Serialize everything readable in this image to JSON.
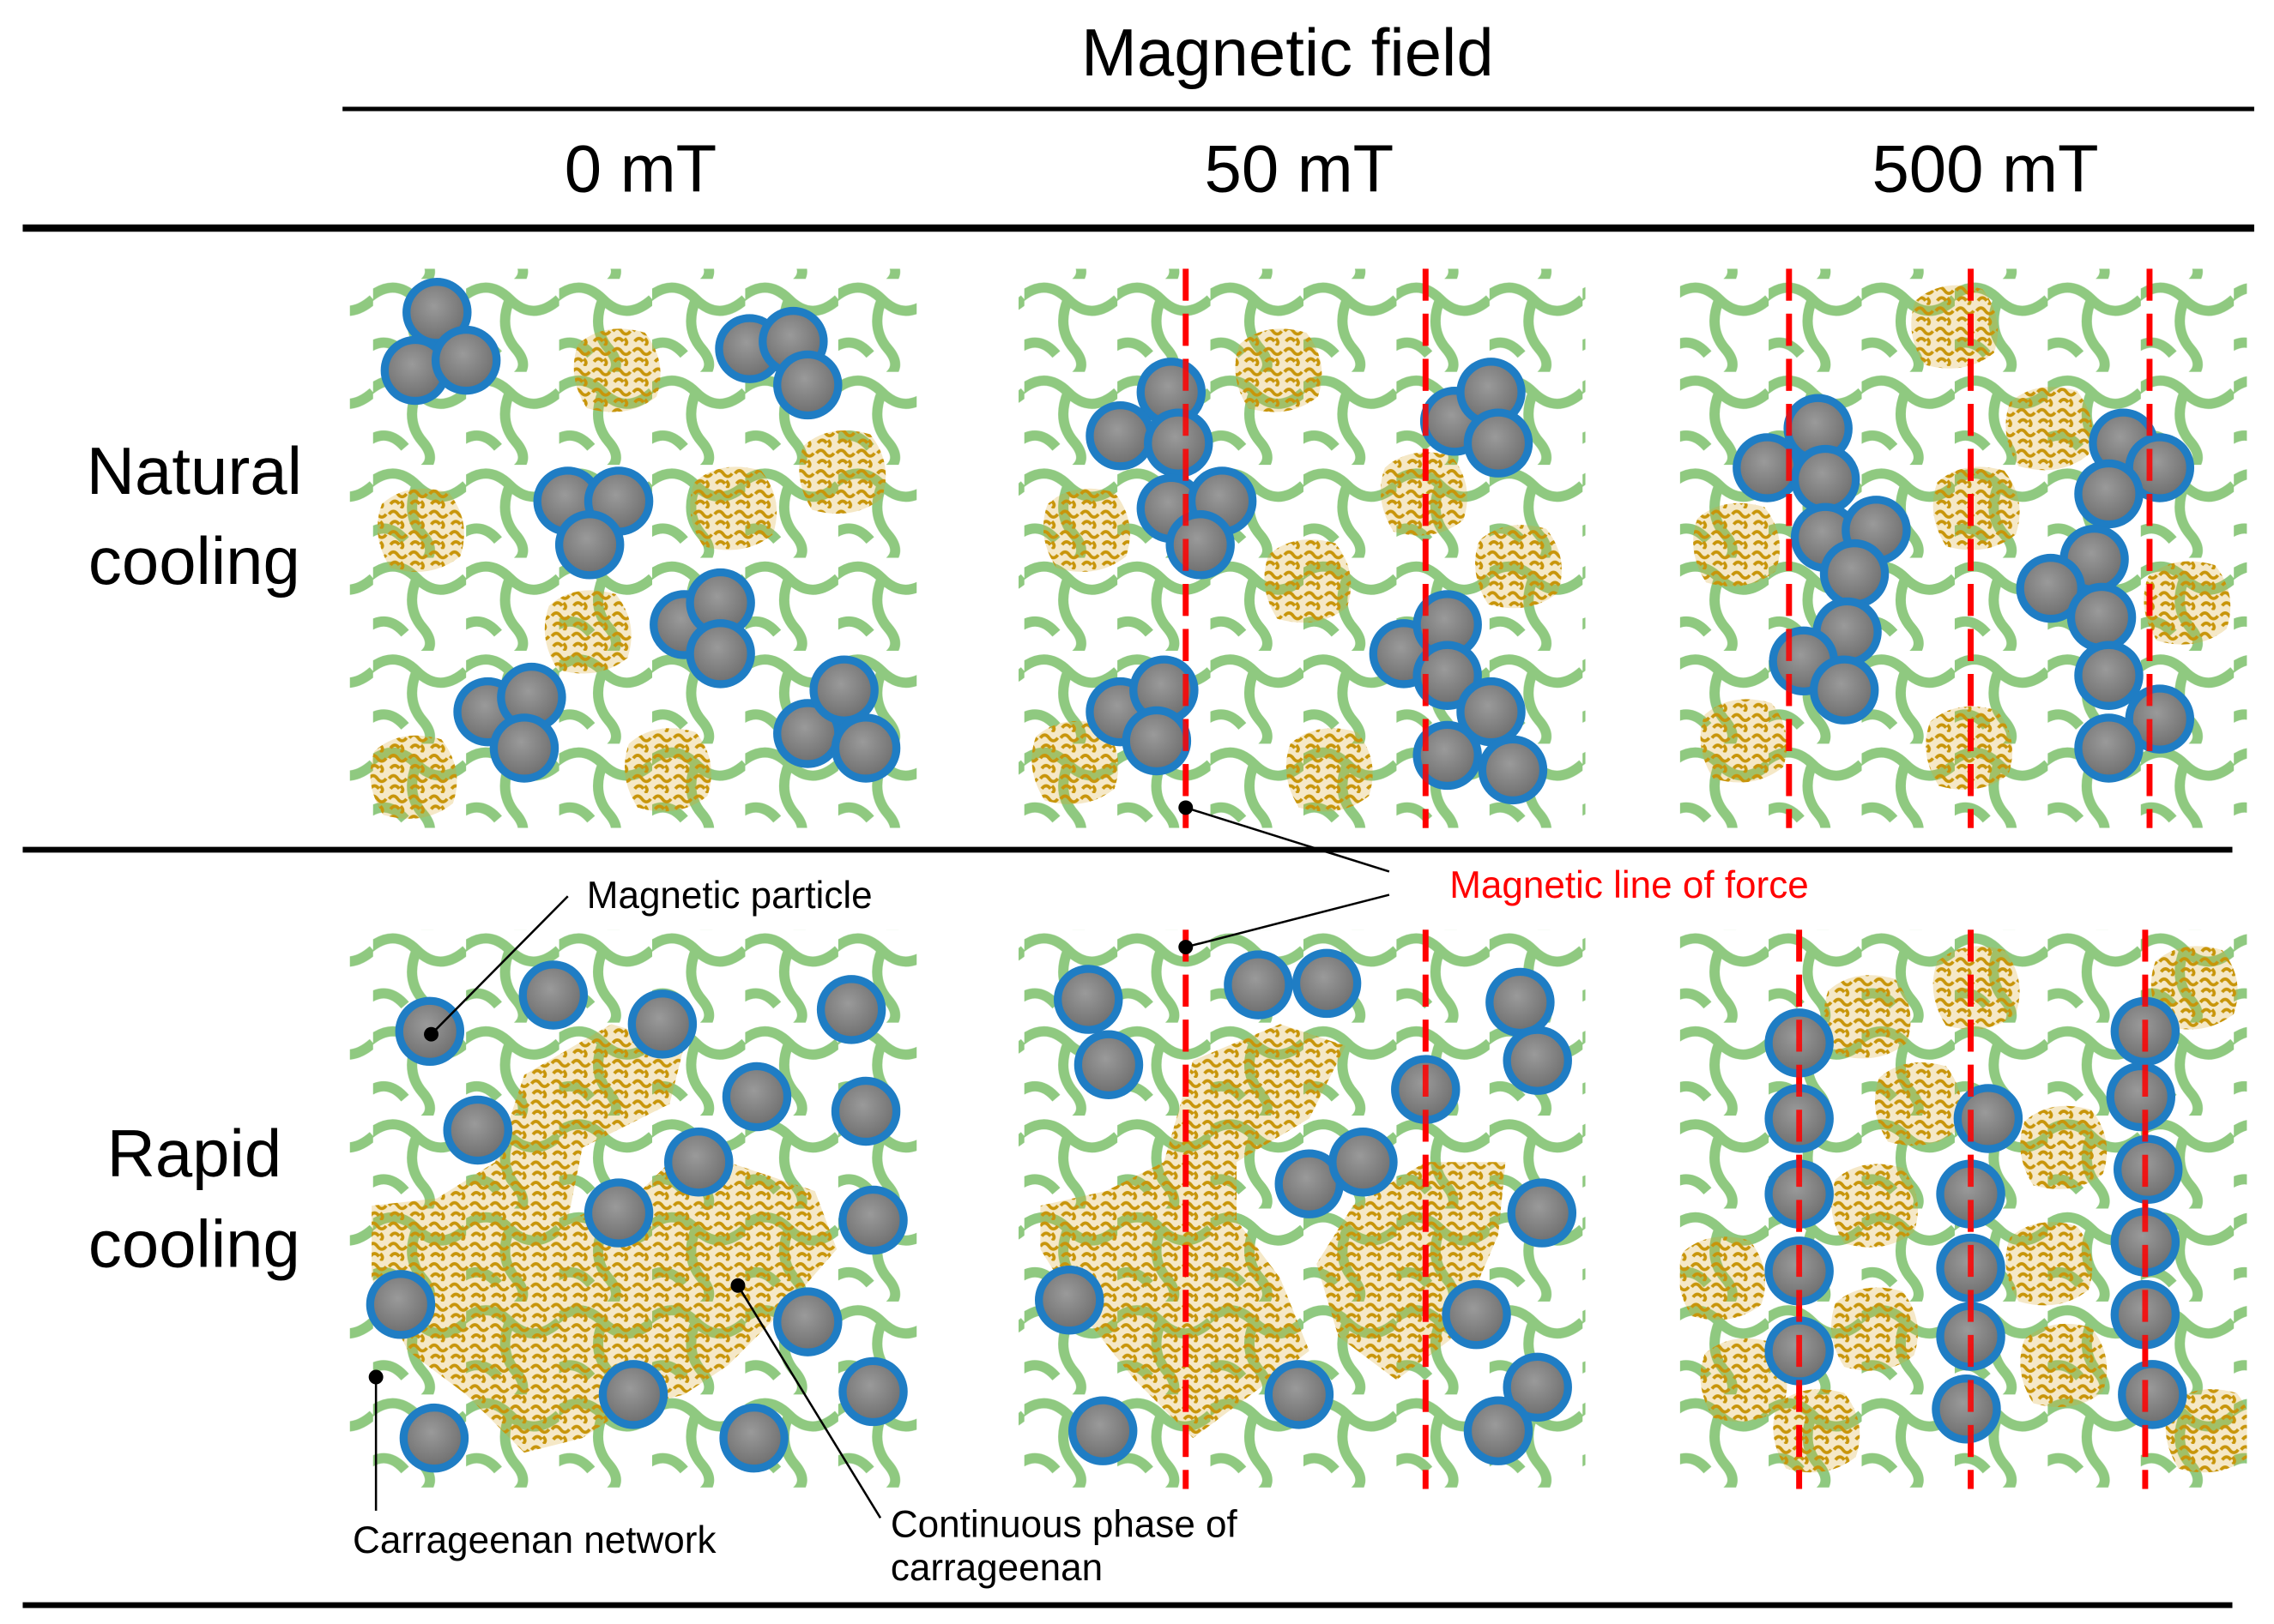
{
  "header": {
    "title": "Magnetic field",
    "columns": [
      "0 mT",
      "50 mT",
      "500 mT"
    ]
  },
  "rows": [
    {
      "label_lines": [
        "Natural",
        "cooling"
      ]
    },
    {
      "label_lines": [
        "Rapid",
        "cooling"
      ]
    }
  ],
  "annotations": {
    "magnetic_particle": "Magnetic particle",
    "line_of_force": "Magnetic line of force",
    "carrageenan_network": "Carrageenan network",
    "continuous_phase_lines": [
      "Continuous phase of",
      "carrageenan"
    ]
  }
}
